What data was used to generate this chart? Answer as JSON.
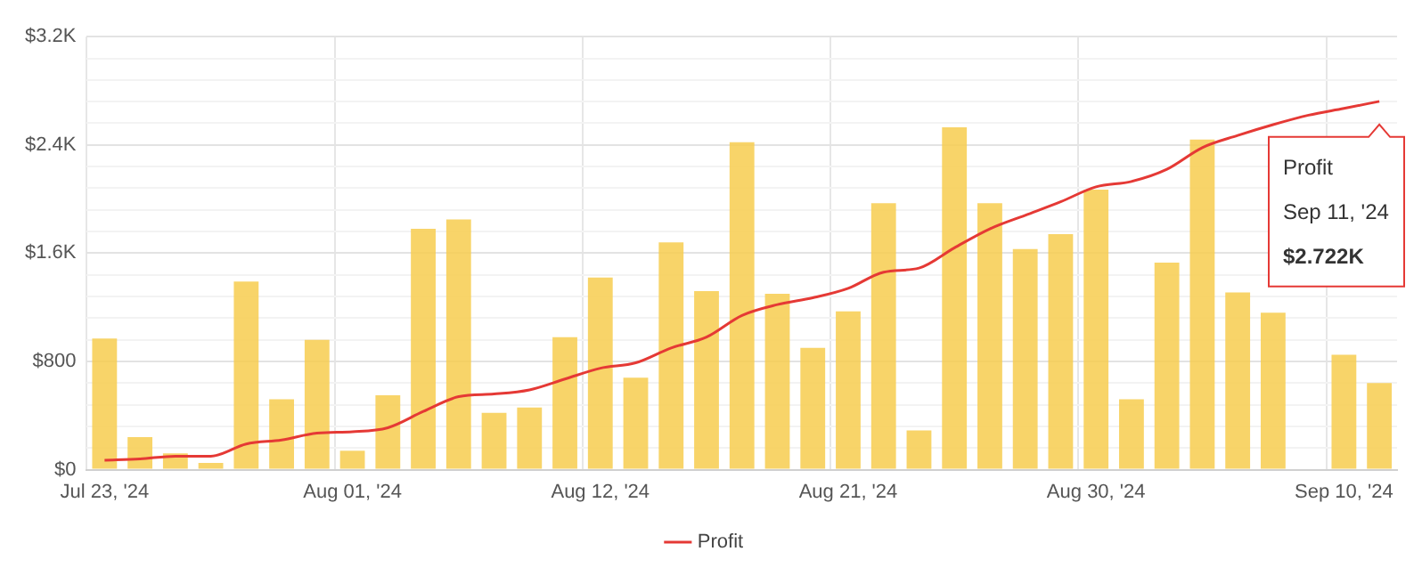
{
  "chart_data": {
    "type": "bar",
    "categories": [
      "Jul 23, '24",
      null,
      null,
      null,
      null,
      null,
      null,
      "Aug 01, '24",
      null,
      null,
      null,
      null,
      null,
      null,
      "Aug 12, '24",
      null,
      null,
      null,
      null,
      null,
      null,
      "Aug 21, '24",
      null,
      null,
      null,
      null,
      null,
      null,
      "Aug 30, '24",
      null,
      null,
      null,
      null,
      null,
      null,
      "Sep 10, '24",
      null
    ],
    "series": [
      {
        "color": "#f7cd4f",
        "values": [
          970,
          240,
          120,
          50,
          1390,
          520,
          960,
          140,
          550,
          1780,
          1850,
          420,
          460,
          980,
          1420,
          680,
          1680,
          1320,
          2420,
          1300,
          900,
          1170,
          1970,
          290,
          2530,
          1970,
          1630,
          1740,
          2070,
          520,
          1530,
          2440,
          1310,
          1160,
          null,
          850,
          640
        ]
      },
      {
        "type": "line",
        "name": "Profit",
        "color": "#e53935",
        "values": [
          70,
          80,
          100,
          100,
          190,
          220,
          270,
          280,
          310,
          430,
          540,
          560,
          590,
          670,
          750,
          790,
          900,
          980,
          1140,
          1220,
          1270,
          1340,
          1460,
          1490,
          1640,
          1780,
          1880,
          1980,
          2090,
          2130,
          2220,
          2380,
          2470,
          2550,
          2620,
          2670,
          2722
        ]
      }
    ],
    "ylim": [
      0,
      3200
    ],
    "yticks": [
      {
        "value": 0,
        "label": "$0"
      },
      {
        "value": 160,
        "label": null
      },
      {
        "value": 320,
        "label": null
      },
      {
        "value": 480,
        "label": null
      },
      {
        "value": 640,
        "label": null
      },
      {
        "value": 800,
        "label": "$800"
      },
      {
        "value": 960,
        "label": null
      },
      {
        "value": 1120,
        "label": null
      },
      {
        "value": 1280,
        "label": null
      },
      {
        "value": 1440,
        "label": null
      },
      {
        "value": 1600,
        "label": "$1.6K"
      },
      {
        "value": 1760,
        "label": null
      },
      {
        "value": 1920,
        "label": null
      },
      {
        "value": 2080,
        "label": null
      },
      {
        "value": 2240,
        "label": null
      },
      {
        "value": 2400,
        "label": "$2.4K"
      },
      {
        "value": 2560,
        "label": null
      },
      {
        "value": 2720,
        "label": null
      },
      {
        "value": 2880,
        "label": null
      },
      {
        "value": 3040,
        "label": null
      },
      {
        "value": 3200,
        "label": "$3.2K"
      }
    ],
    "grid": true,
    "legend": "bottom",
    "marker": "none",
    "annotations": [
      {
        "text": "Profit\nSep 11, '24\n$2.722K",
        "y": 2722
      }
    ]
  }
}
